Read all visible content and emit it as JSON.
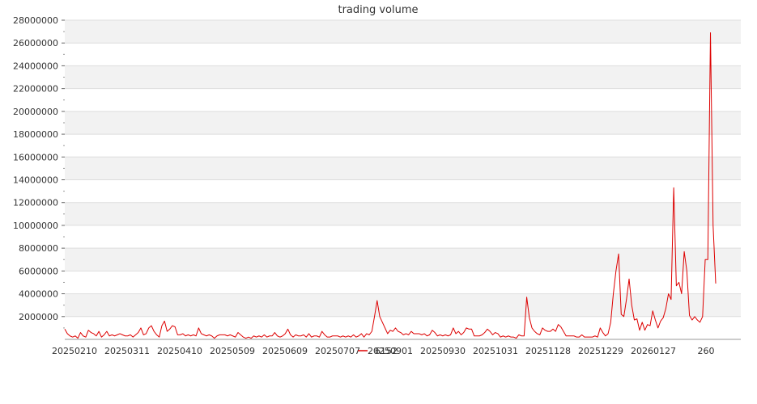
{
  "chart_data": {
    "type": "line",
    "title": "trading volume",
    "xlabel": "",
    "ylabel": "",
    "ylim": [
      0,
      28000000
    ],
    "y_ticks": [
      2000000,
      4000000,
      6000000,
      8000000,
      10000000,
      12000000,
      14000000,
      16000000,
      18000000,
      20000000,
      22000000,
      24000000,
      26000000,
      28000000
    ],
    "y_tick_labels": [
      "2000000",
      "4000000",
      "6000000",
      "8000000",
      "10000000",
      "12000000",
      "14000000",
      "16000000",
      "18000000",
      "20000000",
      "22000000",
      "24000000",
      "26000000",
      "28000000"
    ],
    "x_tick_labels": [
      "20250210",
      "20250311",
      "20250410",
      "20250509",
      "20250609",
      "20250707",
      "20250901",
      "20250930",
      "20251031",
      "20251128",
      "20251229",
      "20260127",
      "260"
    ],
    "grid": "horizontal bands",
    "legend_position": "bottom-center",
    "series": [
      {
        "name": "6152",
        "color": "#dd0000",
        "values": [
          900000,
          500000,
          300000,
          200000,
          300000,
          100000,
          600000,
          300000,
          200000,
          800000,
          600000,
          500000,
          300000,
          700000,
          200000,
          400000,
          700000,
          300000,
          400000,
          300000,
          400000,
          500000,
          400000,
          300000,
          300000,
          400000,
          200000,
          400000,
          600000,
          1000000,
          400000,
          500000,
          1000000,
          1200000,
          700000,
          400000,
          200000,
          1200000,
          1600000,
          700000,
          900000,
          1200000,
          1100000,
          400000,
          400000,
          500000,
          300000,
          400000,
          300000,
          400000,
          300000,
          1000000,
          500000,
          400000,
          300000,
          400000,
          300000,
          100000,
          300000,
          400000,
          400000,
          400000,
          300000,
          400000,
          300000,
          200000,
          600000,
          400000,
          200000,
          100000,
          200000,
          100000,
          300000,
          200000,
          300000,
          200000,
          400000,
          200000,
          300000,
          300000,
          600000,
          300000,
          200000,
          300000,
          500000,
          900000,
          400000,
          200000,
          400000,
          300000,
          300000,
          400000,
          200000,
          500000,
          200000,
          300000,
          300000,
          200000,
          700000,
          400000,
          200000,
          200000,
          300000,
          300000,
          300000,
          200000,
          300000,
          200000,
          300000,
          200000,
          400000,
          200000,
          300000,
          500000,
          200000,
          500000,
          400000,
          700000,
          2000000,
          3400000,
          2000000,
          1500000,
          1000000,
          500000,
          800000,
          700000,
          1000000,
          700000,
          600000,
          400000,
          500000,
          400000,
          700000,
          500000,
          500000,
          500000,
          400000,
          500000,
          300000,
          400000,
          800000,
          600000,
          300000,
          400000,
          300000,
          400000,
          300000,
          400000,
          1000000,
          500000,
          700000,
          400000,
          600000,
          1000000,
          900000,
          900000,
          300000,
          300000,
          300000,
          400000,
          600000,
          900000,
          700000,
          400000,
          600000,
          500000,
          200000,
          300000,
          200000,
          300000,
          200000,
          200000,
          100000,
          400000,
          300000,
          300000,
          3700000,
          1900000,
          1000000,
          700000,
          500000,
          400000,
          1000000,
          800000,
          700000,
          700000,
          900000,
          700000,
          1300000,
          1100000,
          700000,
          300000,
          300000,
          300000,
          300000,
          200000,
          200000,
          400000,
          200000,
          200000,
          200000,
          200000,
          300000,
          200000,
          1000000,
          600000,
          300000,
          500000,
          1500000,
          4000000,
          6000000,
          7500000,
          2200000,
          2000000,
          3500000,
          5300000,
          3000000,
          1700000,
          1800000,
          800000,
          1500000,
          800000,
          1300000,
          1200000,
          2500000,
          1700000,
          1000000,
          1600000,
          1900000,
          2700000,
          4000000,
          3500000,
          13300000,
          4700000,
          5000000,
          4000000,
          7700000,
          6000000,
          2100000,
          1700000,
          2000000,
          1700000,
          1500000,
          2000000,
          7000000,
          7000000,
          26900000,
          10000000,
          4900000
        ]
      }
    ]
  }
}
